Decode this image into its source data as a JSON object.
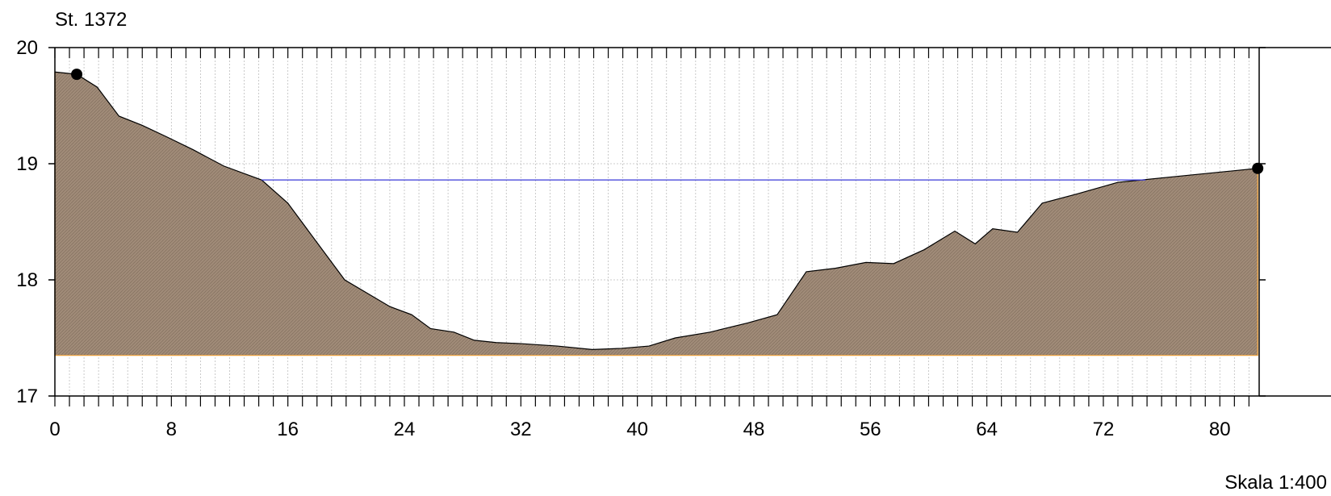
{
  "chart_data": {
    "type": "area",
    "title": "St. 1372",
    "scale_label": "Skala 1:400",
    "xlabel": "",
    "ylabel": "",
    "xlim": [
      0,
      82.7
    ],
    "ylim": [
      17,
      20
    ],
    "x_ticks": [
      "0",
      "8",
      "16",
      "24",
      "32",
      "40",
      "48",
      "56",
      "64",
      "72",
      "80"
    ],
    "y_ticks": [
      "17",
      "18",
      "19",
      "20"
    ],
    "grid": true,
    "colors": {
      "fill": "#a08b78",
      "outline": "#000000",
      "base_line": "#e8a040",
      "water_line": "#3a3ad8",
      "grid": "#bdbdbd",
      "marker": "#000000"
    },
    "terrain": {
      "base_level": 17.35,
      "x": [
        0,
        1.5,
        2.9,
        4.4,
        6.0,
        7.7,
        9.5,
        11.6,
        14.2,
        16.0,
        19.9,
        23.0,
        24.5,
        25.8,
        27.4,
        28.8,
        30.3,
        32.1,
        34.5,
        36.9,
        38.9,
        40.8,
        42.6,
        45.0,
        47.6,
        49.6,
        51.6,
        53.6,
        55.7,
        57.6,
        59.7,
        61.8,
        63.2,
        64.4,
        66.1,
        67.8,
        70.2,
        73.0,
        77.0,
        82.6
      ],
      "y": [
        19.79,
        19.77,
        19.66,
        19.41,
        19.33,
        19.23,
        19.12,
        18.98,
        18.86,
        18.66,
        18.0,
        17.77,
        17.7,
        17.58,
        17.55,
        17.48,
        17.46,
        17.45,
        17.43,
        17.4,
        17.41,
        17.43,
        17.5,
        17.55,
        17.63,
        17.7,
        18.07,
        18.1,
        18.15,
        18.14,
        18.26,
        18.42,
        18.31,
        18.44,
        18.41,
        18.66,
        18.74,
        18.84,
        18.89,
        18.96
      ]
    },
    "water_level": {
      "y": 18.86,
      "x_start": 14.2,
      "x_end": 74.9
    },
    "markers": [
      {
        "x": 1.5,
        "y": 19.77
      },
      {
        "x": 82.6,
        "y": 18.96
      }
    ]
  }
}
